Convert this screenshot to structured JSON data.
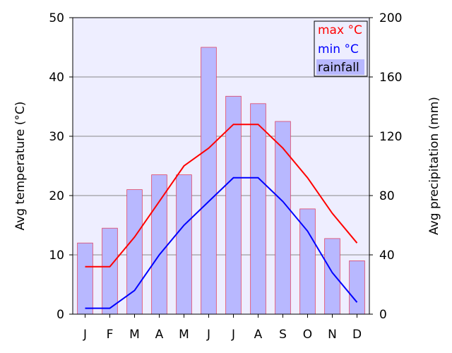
{
  "chart_data": {
    "type": "bar+line",
    "categories": [
      "J",
      "F",
      "M",
      "A",
      "M",
      "J",
      "J",
      "A",
      "S",
      "O",
      "N",
      "D"
    ],
    "series": [
      {
        "name": "max °C",
        "type": "line",
        "axis": "left",
        "color": "#ff0000",
        "values": [
          8,
          8,
          13,
          19,
          25,
          28,
          32,
          32,
          28,
          23,
          17,
          12
        ]
      },
      {
        "name": "min °C",
        "type": "line",
        "axis": "left",
        "color": "#0000ff",
        "values": [
          1,
          1,
          4,
          10,
          15,
          19,
          23,
          23,
          19,
          14,
          7,
          2
        ]
      },
      {
        "name": "rainfall",
        "type": "bar",
        "axis": "right",
        "color": "#b8b8ff",
        "edge_color": "#dd4466",
        "values": [
          48,
          58,
          84,
          94,
          94,
          180,
          147,
          142,
          130,
          71,
          51,
          36
        ]
      }
    ],
    "ylabel_left": "Avg temperature (°C)",
    "ylabel_right": "Avg precipitation (mm)",
    "ylim_left": [
      0,
      50
    ],
    "ylim_right": [
      0,
      200
    ],
    "yticks_left": [
      "0",
      "10",
      "20",
      "30",
      "40",
      "50"
    ],
    "yticks_right": [
      "0",
      "40",
      "80",
      "120",
      "160",
      "200"
    ],
    "grid": true,
    "background": "#eeeeff",
    "legend_position": "top-right"
  }
}
